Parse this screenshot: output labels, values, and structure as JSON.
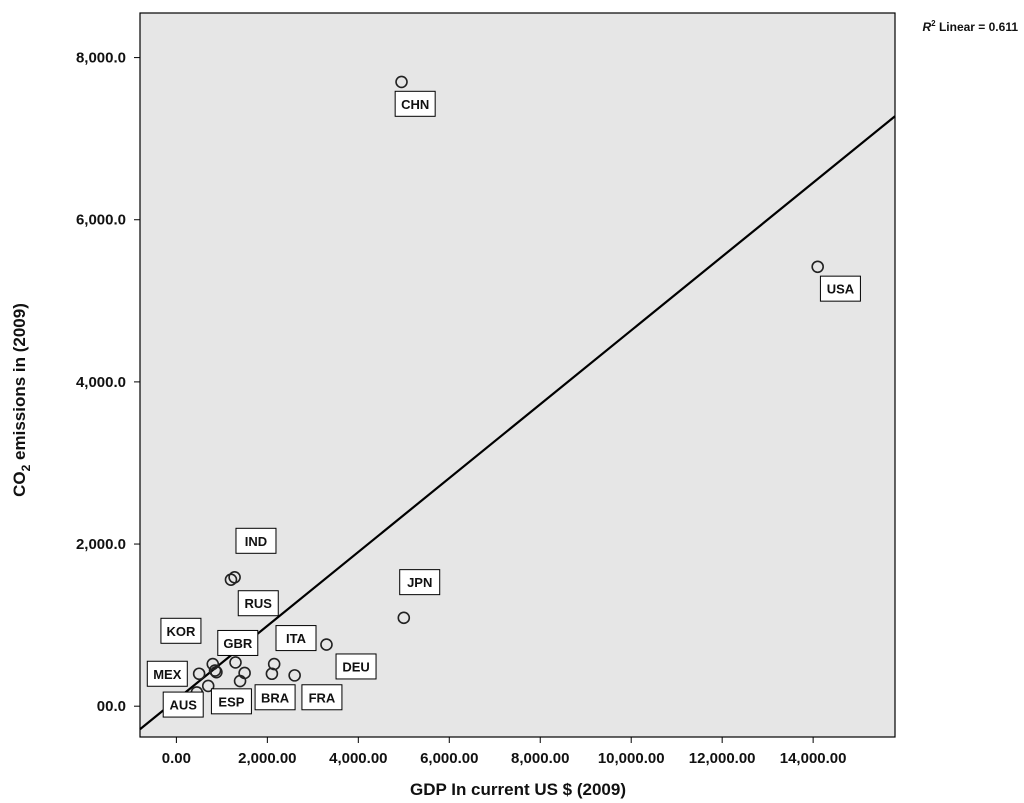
{
  "chart_data": {
    "type": "scatter",
    "title": "",
    "xlabel": "GDP In current US $ (2009)",
    "ylabel_main": "CO",
    "ylabel_sub": "2",
    "ylabel_rest": " emissions in (2009)",
    "xlim": [
      -800,
      15800
    ],
    "ylim": [
      -380,
      8550
    ],
    "x_ticks": [
      0,
      2000,
      4000,
      6000,
      8000,
      10000,
      12000,
      14000
    ],
    "x_tick_labels": [
      "0.00",
      "2,000.00",
      "4,000.00",
      "6,000.00",
      "8,000.00",
      "10,000.00",
      "12,000.00",
      "14,000.00"
    ],
    "y_ticks": [
      0,
      2000,
      4000,
      6000,
      8000
    ],
    "y_tick_labels": [
      "00.0",
      "2,000.0",
      "4,000.0",
      "6,000.0",
      "8,000.0"
    ],
    "grid": false,
    "background": "#e6e6e6",
    "points": [
      {
        "x": 4950,
        "y": 7700
      },
      {
        "x": 14100,
        "y": 5420
      },
      {
        "x": 5000,
        "y": 1090
      },
      {
        "x": 1200,
        "y": 1560
      },
      {
        "x": 1280,
        "y": 1590
      },
      {
        "x": 3300,
        "y": 760
      },
      {
        "x": 2600,
        "y": 380
      },
      {
        "x": 2150,
        "y": 520
      },
      {
        "x": 2100,
        "y": 400
      },
      {
        "x": 1500,
        "y": 410
      },
      {
        "x": 1400,
        "y": 310
      },
      {
        "x": 1300,
        "y": 540
      },
      {
        "x": 850,
        "y": 440
      },
      {
        "x": 880,
        "y": 420
      },
      {
        "x": 800,
        "y": 520
      },
      {
        "x": 500,
        "y": 400
      },
      {
        "x": 700,
        "y": 250
      },
      {
        "x": 450,
        "y": 170
      }
    ],
    "labels": [
      {
        "text": "CHN",
        "x": 5250,
        "y": 7430
      },
      {
        "text": "USA",
        "x": 14600,
        "y": 5150
      },
      {
        "text": "JPN",
        "x": 5350,
        "y": 1530
      },
      {
        "text": "IND",
        "x": 1750,
        "y": 2040
      },
      {
        "text": "RUS",
        "x": 1800,
        "y": 1270
      },
      {
        "text": "ITA",
        "x": 2630,
        "y": 840
      },
      {
        "text": "DEU",
        "x": 3950,
        "y": 490
      },
      {
        "text": "KOR",
        "x": 100,
        "y": 930
      },
      {
        "text": "GBR",
        "x": 1350,
        "y": 780
      },
      {
        "text": "MEX",
        "x": -200,
        "y": 400
      },
      {
        "text": "FRA",
        "x": 3200,
        "y": 110
      },
      {
        "text": "BRA",
        "x": 2170,
        "y": 110
      },
      {
        "text": "ESP",
        "x": 1210,
        "y": 60
      },
      {
        "text": "AUS",
        "x": 150,
        "y": 20
      }
    ],
    "fit_line": {
      "slope": 0.4555,
      "intercept": 80
    },
    "r2_prefix": "R",
    "r2_sup": "2",
    "r2_text": " Linear = 0.611"
  }
}
